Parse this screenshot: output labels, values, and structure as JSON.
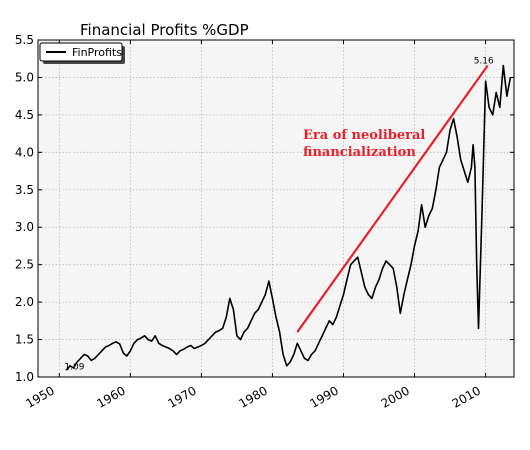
{
  "chart_data": {
    "type": "line",
    "title": "Financial Profits %GDP",
    "xlabel": "",
    "ylabel": "",
    "xlim": [
      1947,
      2014
    ],
    "ylim": [
      1.0,
      5.5
    ],
    "x_ticks": [
      1950,
      1960,
      1970,
      1980,
      1990,
      2000,
      2010
    ],
    "x_tick_labels": [
      "1950",
      "1960",
      "1970",
      "1980",
      "1990",
      "2000",
      "2010"
    ],
    "y_ticks": [
      1.0,
      1.5,
      2.0,
      2.5,
      3.0,
      3.5,
      4.0,
      4.5,
      5.0,
      5.5
    ],
    "y_tick_labels": [
      "1.0",
      "1.5",
      "2.0",
      "2.5",
      "3.0",
      "3.5",
      "4.0",
      "4.5",
      "5.0",
      "5.5"
    ],
    "grid": true,
    "legend_position": "top-left",
    "series": [
      {
        "name": "FinProfits",
        "color": "#000000",
        "x": [
          1951.0,
          1951.5,
          1952.0,
          1952.5,
          1953.0,
          1953.5,
          1954.0,
          1954.5,
          1955.0,
          1955.5,
          1956.0,
          1956.5,
          1957.0,
          1957.5,
          1958.0,
          1958.5,
          1959.0,
          1959.5,
          1960.0,
          1960.5,
          1961.0,
          1961.5,
          1962.0,
          1962.5,
          1963.0,
          1963.5,
          1964.0,
          1964.5,
          1965.0,
          1965.5,
          1966.0,
          1966.5,
          1967.0,
          1967.5,
          1968.0,
          1968.5,
          1969.0,
          1969.5,
          1970.0,
          1970.5,
          1971.0,
          1971.5,
          1972.0,
          1972.5,
          1973.0,
          1973.5,
          1974.0,
          1974.5,
          1975.0,
          1975.5,
          1976.0,
          1976.5,
          1977.0,
          1977.5,
          1978.0,
          1978.5,
          1979.0,
          1979.5,
          1980.0,
          1980.5,
          1981.0,
          1981.5,
          1982.0,
          1982.5,
          1983.0,
          1983.5,
          1984.0,
          1984.5,
          1985.0,
          1985.5,
          1986.0,
          1986.5,
          1987.0,
          1987.5,
          1988.0,
          1988.5,
          1989.0,
          1989.5,
          1990.0,
          1990.5,
          1991.0,
          1991.5,
          1992.0,
          1992.5,
          1993.0,
          1993.5,
          1994.0,
          1994.5,
          1995.0,
          1995.5,
          1996.0,
          1996.5,
          1997.0,
          1997.5,
          1998.0,
          1998.5,
          1999.0,
          1999.5,
          2000.0,
          2000.5,
          2001.0,
          2001.5,
          2002.0,
          2002.5,
          2003.0,
          2003.5,
          2004.0,
          2004.5,
          2005.0,
          2005.5,
          2006.0,
          2006.5,
          2007.0,
          2007.5,
          2008.0,
          2008.25,
          2008.5,
          2008.75,
          2009.0,
          2009.5,
          2010.0,
          2010.5,
          2011.0,
          2011.5,
          2012.0,
          2012.5,
          2013.0,
          2013.5
        ],
        "y": [
          1.09,
          1.15,
          1.12,
          1.2,
          1.25,
          1.3,
          1.28,
          1.22,
          1.25,
          1.3,
          1.35,
          1.4,
          1.42,
          1.45,
          1.47,
          1.44,
          1.32,
          1.28,
          1.35,
          1.45,
          1.5,
          1.52,
          1.55,
          1.5,
          1.48,
          1.55,
          1.45,
          1.42,
          1.4,
          1.38,
          1.35,
          1.3,
          1.35,
          1.37,
          1.4,
          1.42,
          1.38,
          1.4,
          1.42,
          1.45,
          1.5,
          1.55,
          1.6,
          1.62,
          1.65,
          1.8,
          2.05,
          1.9,
          1.55,
          1.5,
          1.6,
          1.65,
          1.75,
          1.85,
          1.9,
          2.0,
          2.1,
          2.28,
          2.05,
          1.8,
          1.6,
          1.3,
          1.15,
          1.2,
          1.3,
          1.45,
          1.35,
          1.25,
          1.22,
          1.3,
          1.35,
          1.45,
          1.55,
          1.65,
          1.75,
          1.7,
          1.8,
          1.95,
          2.1,
          2.3,
          2.5,
          2.55,
          2.6,
          2.4,
          2.2,
          2.1,
          2.05,
          2.2,
          2.3,
          2.45,
          2.55,
          2.5,
          2.45,
          2.2,
          1.85,
          2.1,
          2.3,
          2.5,
          2.75,
          2.95,
          3.3,
          3.0,
          3.15,
          3.25,
          3.5,
          3.8,
          3.9,
          4.0,
          4.3,
          4.45,
          4.2,
          3.9,
          3.75,
          3.6,
          3.8,
          4.1,
          3.8,
          2.5,
          1.65,
          3.2,
          4.95,
          4.6,
          4.5,
          4.8,
          4.6,
          5.16,
          4.75,
          5.0
        ]
      }
    ],
    "annotations": [
      {
        "text_line1": "Era of neoliberal",
        "text_line2": "financialization",
        "color": "#e8202a"
      }
    ],
    "trend_line": {
      "color": "#e8202a",
      "x": [
        1983.5,
        2010.3
      ],
      "y": [
        1.6,
        5.16
      ]
    },
    "point_labels": [
      {
        "text": "1.09",
        "x": 1951.0,
        "y": 1.09
      },
      {
        "text": "5.16",
        "x": 2010.3,
        "y": 5.16
      }
    ],
    "colors": {
      "background": "#f5f5f5",
      "grid": "#bbbbbb",
      "line": "#000000",
      "accent": "#e8202a"
    }
  }
}
